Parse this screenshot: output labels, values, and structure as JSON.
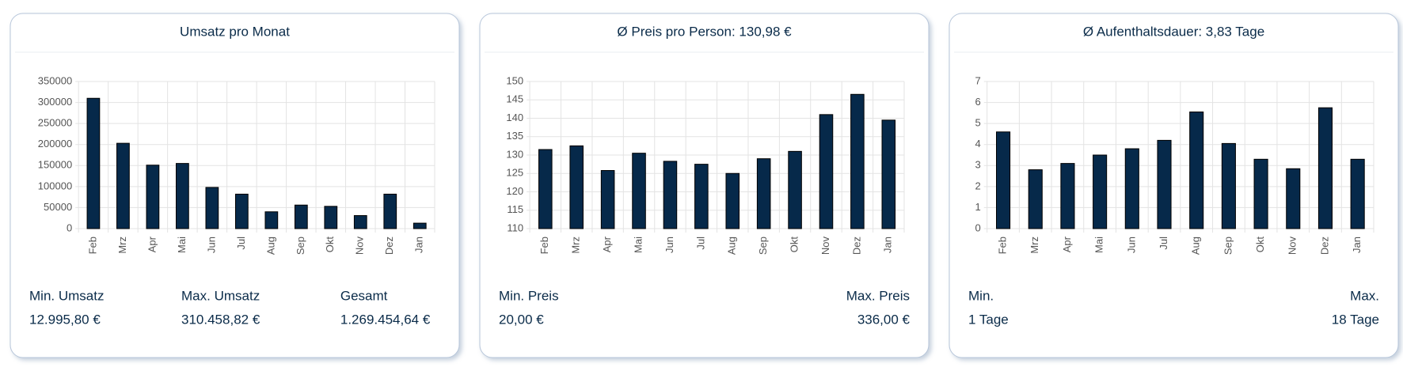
{
  "chart_data": [
    {
      "type": "bar",
      "title": "Umsatz pro Monat",
      "categories": [
        "Feb",
        "Mrz",
        "Apr",
        "Mai",
        "Jun",
        "Jul",
        "Aug",
        "Sep",
        "Okt",
        "Nov",
        "Dez",
        "Jan"
      ],
      "values": [
        310000,
        203000,
        151000,
        155000,
        98000,
        82000,
        40000,
        56000,
        53000,
        31000,
        82000,
        13000
      ],
      "color": "#06294a",
      "ylim": [
        0,
        350000
      ],
      "yticks": [
        0,
        50000,
        100000,
        150000,
        200000,
        250000,
        300000,
        350000
      ],
      "grid": true
    },
    {
      "type": "bar",
      "title": "Ø Preis pro Person: 130,98 €",
      "categories": [
        "Feb",
        "Mrz",
        "Apr",
        "Mai",
        "Jun",
        "Jul",
        "Aug",
        "Sep",
        "Okt",
        "Nov",
        "Dez",
        "Jan"
      ],
      "values": [
        131.5,
        132.5,
        125.8,
        130.5,
        128.3,
        127.5,
        125,
        129,
        131,
        141,
        146.5,
        139.5
      ],
      "color": "#06294a",
      "ylim": [
        110,
        150
      ],
      "yticks": [
        110,
        115,
        120,
        125,
        130,
        135,
        140,
        145,
        150
      ],
      "grid": true
    },
    {
      "type": "bar",
      "title": "Ø Aufenthaltsdauer: 3,83 Tage",
      "categories": [
        "Feb",
        "Mrz",
        "Apr",
        "Mai",
        "Jun",
        "Jul",
        "Aug",
        "Sep",
        "Okt",
        "Nov",
        "Dez",
        "Jan"
      ],
      "values": [
        4.6,
        2.8,
        3.1,
        3.5,
        3.8,
        4.2,
        5.55,
        4.05,
        3.3,
        2.85,
        5.75,
        3.3
      ],
      "color": "#06294a",
      "ylim": [
        0,
        7
      ],
      "yticks": [
        0,
        1,
        2,
        3,
        4,
        5,
        6,
        7
      ],
      "grid": true
    }
  ],
  "stats": [
    [
      {
        "label": "Min. Umsatz",
        "value": "12.995,80 €"
      },
      {
        "label": "Max. Umsatz",
        "value": "310.458,82 €"
      },
      {
        "label": "Gesamt",
        "value": "1.269.454,64 €"
      }
    ],
    [
      {
        "label": "Min. Preis",
        "value": "20,00 €"
      },
      {
        "label": "Max. Preis",
        "value": "336,00 €"
      }
    ],
    [
      {
        "label": "Min.",
        "value": "1 Tage"
      },
      {
        "label": "Max.",
        "value": "18 Tage"
      }
    ]
  ]
}
